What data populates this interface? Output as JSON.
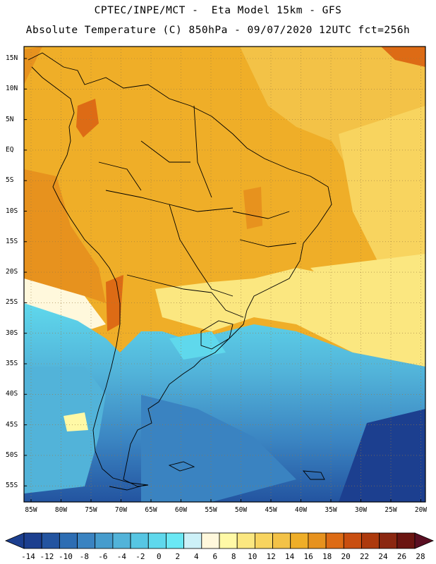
{
  "title": {
    "line1": "CPTEC/INPE/MCT -  Eta Model 15km - GFS",
    "line2": "Absolute Temperature (C) 850hPa - 09/07/2020 12UTC fct=256h"
  },
  "map": {
    "lat_labels": [
      "15N",
      "10N",
      "5N",
      "EQ",
      "5S",
      "10S",
      "15S",
      "20S",
      "25S",
      "30S",
      "35S",
      "40S",
      "45S",
      "50S",
      "55S"
    ],
    "lon_labels": [
      "85W",
      "80W",
      "75W",
      "70W",
      "65W",
      "60W",
      "55W",
      "50W",
      "45W",
      "40W",
      "35W",
      "30W",
      "25W",
      "20W"
    ]
  },
  "colorbar": {
    "labels": [
      "-14",
      "-12",
      "-10",
      "-8",
      "-6",
      "-4",
      "-2",
      "0",
      "2",
      "4",
      "6",
      "8",
      "10",
      "12",
      "14",
      "16",
      "18",
      "20",
      "22",
      "24",
      "26",
      "28"
    ],
    "colors": [
      "#1c3f8f",
      "#2354a0",
      "#2d6db3",
      "#3a83c1",
      "#469ccd",
      "#52b3d9",
      "#57c6e3",
      "#5fd8ec",
      "#6ae8f4",
      "#cdf1f8",
      "#fff8dc",
      "#fff9a6",
      "#fbe780",
      "#f8d45f",
      "#f3c247",
      "#efae28",
      "#e7921e",
      "#dd6b15",
      "#c94e10",
      "#ad3a0d",
      "#8b2710",
      "#6b1511"
    ]
  }
}
